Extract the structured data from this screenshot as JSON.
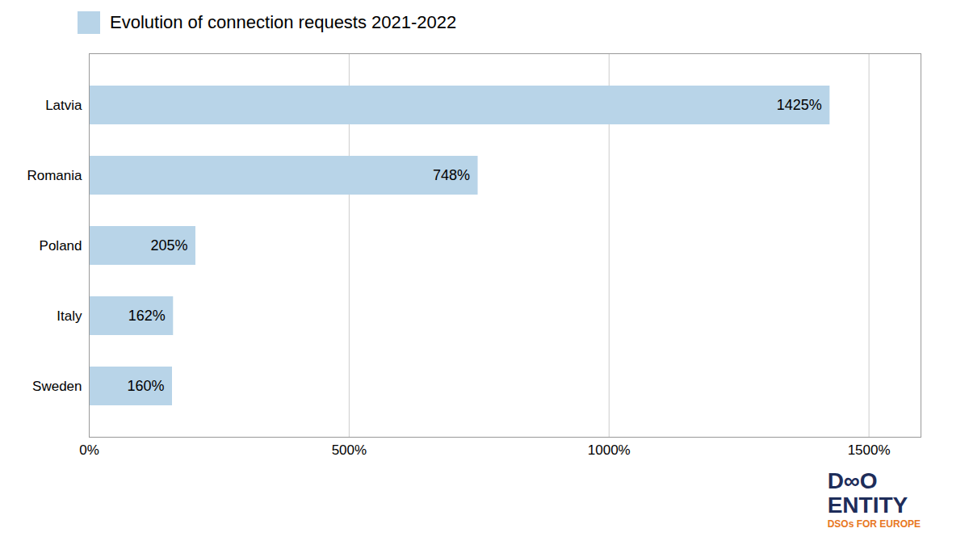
{
  "chart_data": {
    "type": "bar",
    "orientation": "horizontal",
    "title": "Evolution of connection requests 2021-2022",
    "categories": [
      "Sweden",
      "Italy",
      "Poland",
      "Romania",
      "Latvia"
    ],
    "values": [
      160,
      162,
      205,
      748,
      1425
    ],
    "value_labels": [
      "160%",
      "162%",
      "205%",
      "748%",
      "1425%"
    ],
    "data_labels": true,
    "color": "#b8d4e8",
    "xlim": [
      0,
      1600
    ],
    "xticks": [
      {
        "value": 0,
        "label": "0%"
      },
      {
        "value": 500,
        "label": "500%"
      },
      {
        "value": 1000,
        "label": "1000%"
      },
      {
        "value": 1500,
        "label": "1500%"
      }
    ],
    "grid": true,
    "annotations": [
      {
        "text": "D∞O",
        "color": "#1e2d5a"
      },
      {
        "text": "ENTITY",
        "color": "#1e2d5a"
      },
      {
        "text": "DSOs FOR EUROPE",
        "color": "#e87722"
      }
    ]
  }
}
